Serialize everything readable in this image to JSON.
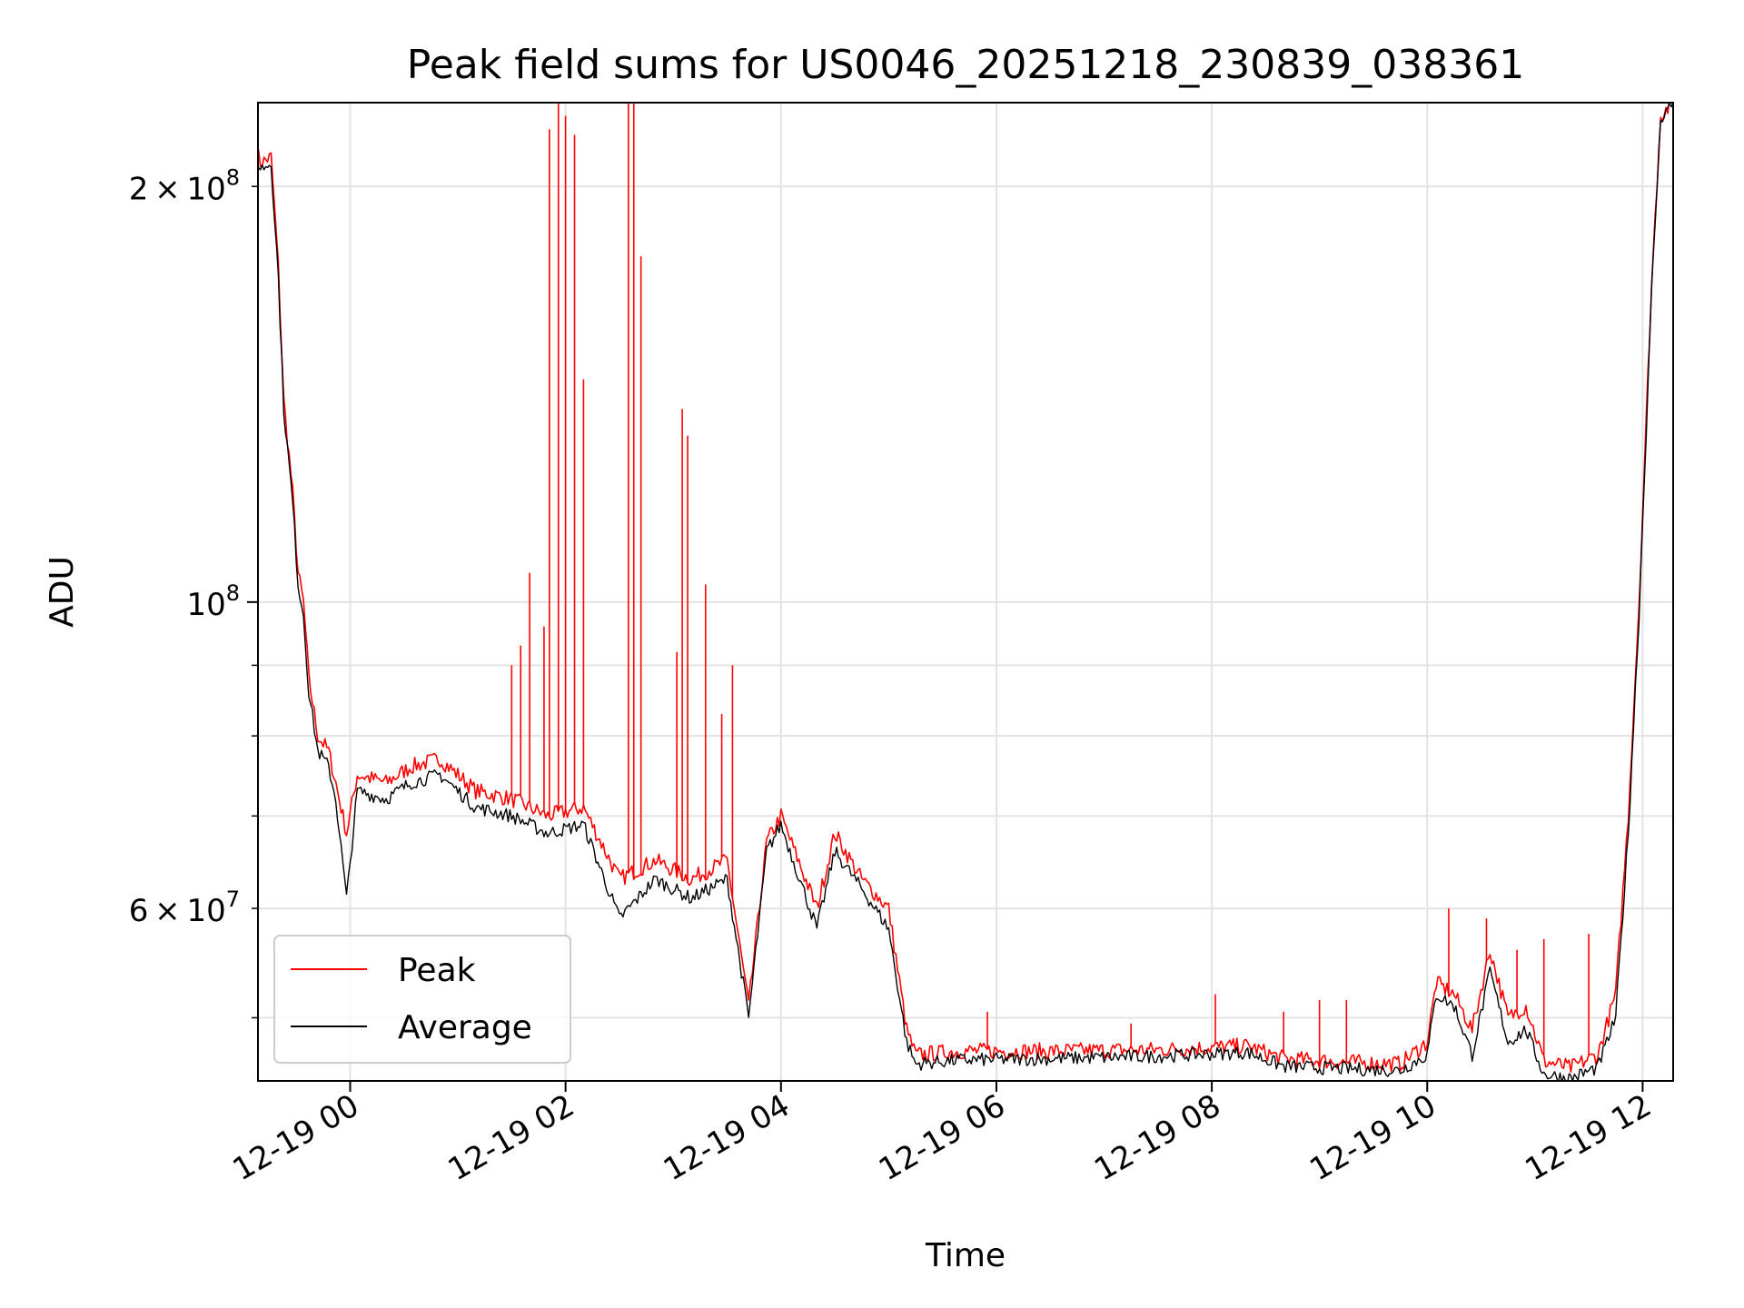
{
  "chart_data": {
    "type": "line",
    "title": "Peak field sums for US0046_20251218_230839_038361",
    "xlabel": "Time",
    "ylabel": "ADU",
    "x_axis": {
      "kind": "time",
      "range": [
        "2025-12-18T23:08:39",
        "2025-12-19T12:17:00"
      ],
      "ticks": [
        {
          "t": "2025-12-19T00:00",
          "label": "12-19 00"
        },
        {
          "t": "2025-12-19T02:00",
          "label": "12-19 02"
        },
        {
          "t": "2025-12-19T04:00",
          "label": "12-19 04"
        },
        {
          "t": "2025-12-19T06:00",
          "label": "12-19 06"
        },
        {
          "t": "2025-12-19T08:00",
          "label": "12-19 08"
        },
        {
          "t": "2025-12-19T10:00",
          "label": "12-19 10"
        },
        {
          "t": "2025-12-19T12:00",
          "label": "12-19 12"
        }
      ]
    },
    "y_axis": {
      "scale": "log",
      "range": [
        45000000,
        230000000
      ],
      "major_ticks": [
        {
          "value": 100000000,
          "base": "10",
          "exp": "8"
        }
      ],
      "minor_ticks": [
        {
          "value": 60000000,
          "mant": "6",
          "exp": "7",
          "labeled": true
        },
        {
          "value": 200000000,
          "mant": "2",
          "exp": "8",
          "labeled": true
        },
        {
          "value": 50000000,
          "labeled": false
        },
        {
          "value": 70000000,
          "labeled": false
        },
        {
          "value": 80000000,
          "labeled": false
        },
        {
          "value": 90000000,
          "labeled": false
        }
      ]
    },
    "grid": true,
    "legend": {
      "position": "lower-left"
    },
    "series": [
      {
        "name": "Peak",
        "color": "#ff0000",
        "points": [
          [
            "2025-12-18T23:08",
            212000000
          ],
          [
            "2025-12-18T23:10",
            208000000
          ],
          [
            "2025-12-18T23:16",
            210000000
          ],
          [
            "2025-12-18T23:20",
            175000000
          ],
          [
            "2025-12-18T23:23",
            140000000
          ],
          [
            "2025-12-18T23:28",
            120000000
          ],
          [
            "2025-12-18T23:31",
            105000000
          ],
          [
            "2025-12-18T23:34",
            100000000
          ],
          [
            "2025-12-18T23:37",
            88000000
          ],
          [
            "2025-12-18T23:42",
            80000000
          ],
          [
            "2025-12-18T23:48",
            78000000
          ],
          [
            "2025-12-18T23:52",
            74000000
          ],
          [
            "2025-12-18T23:58",
            68000000
          ],
          [
            "2025-12-19T00:04",
            75000000
          ],
          [
            "2025-12-19T00:20",
            74000000
          ],
          [
            "2025-12-19T00:34",
            76000000
          ],
          [
            "2025-12-19T00:50",
            77000000
          ],
          [
            "2025-12-19T01:10",
            73000000
          ],
          [
            "2025-12-19T01:30",
            72000000
          ],
          [
            "2025-12-19T01:50",
            70000000
          ],
          [
            "2025-12-19T02:10",
            71000000
          ],
          [
            "2025-12-19T02:30",
            63000000
          ],
          [
            "2025-12-19T02:50",
            65000000
          ],
          [
            "2025-12-19T03:10",
            63000000
          ],
          [
            "2025-12-19T03:30",
            65000000
          ],
          [
            "2025-12-19T03:42",
            51000000
          ],
          [
            "2025-12-19T03:52",
            67000000
          ],
          [
            "2025-12-19T04:00",
            70000000
          ],
          [
            "2025-12-19T04:20",
            60000000
          ],
          [
            "2025-12-19T04:30",
            68000000
          ],
          [
            "2025-12-19T04:45",
            63000000
          ],
          [
            "2025-12-19T05:00",
            60000000
          ],
          [
            "2025-12-19T05:10",
            49000000
          ],
          [
            "2025-12-19T05:15",
            47000000
          ],
          [
            "2025-12-19T05:40",
            47300000
          ],
          [
            "2025-12-19T06:30",
            47300000
          ],
          [
            "2025-12-19T07:30",
            47400000
          ],
          [
            "2025-12-19T08:20",
            47700000
          ],
          [
            "2025-12-19T08:40",
            46700000
          ],
          [
            "2025-12-19T09:20",
            46400000
          ],
          [
            "2025-12-19T09:45",
            46300000
          ],
          [
            "2025-12-19T10:00",
            48000000
          ],
          [
            "2025-12-19T10:05",
            53000000
          ],
          [
            "2025-12-19T10:15",
            52000000
          ],
          [
            "2025-12-19T10:25",
            49000000
          ],
          [
            "2025-12-19T10:35",
            56000000
          ],
          [
            "2025-12-19T10:45",
            50000000
          ],
          [
            "2025-12-19T10:55",
            51000000
          ],
          [
            "2025-12-19T11:05",
            46500000
          ],
          [
            "2025-12-19T11:20",
            46000000
          ],
          [
            "2025-12-19T11:35",
            47000000
          ],
          [
            "2025-12-19T11:45",
            52000000
          ],
          [
            "2025-12-19T11:52",
            70000000
          ],
          [
            "2025-12-19T11:58",
            100000000
          ],
          [
            "2025-12-19T12:05",
            170000000
          ],
          [
            "2025-12-19T12:10",
            225000000
          ],
          [
            "2025-12-19T12:17",
            230000000
          ]
        ],
        "spikes": [
          [
            "2025-12-19T01:30",
            90000000
          ],
          [
            "2025-12-19T01:35",
            93000000
          ],
          [
            "2025-12-19T01:40",
            105000000
          ],
          [
            "2025-12-19T01:48",
            96000000
          ],
          [
            "2025-12-19T01:51",
            220000000
          ],
          [
            "2025-12-19T01:56",
            230000000
          ],
          [
            "2025-12-19T02:00",
            225000000
          ],
          [
            "2025-12-19T02:05",
            218000000
          ],
          [
            "2025-12-19T02:10",
            145000000
          ],
          [
            "2025-12-19T02:35",
            230000000
          ],
          [
            "2025-12-19T02:38",
            230000000
          ],
          [
            "2025-12-19T02:42",
            178000000
          ],
          [
            "2025-12-19T03:02",
            92000000
          ],
          [
            "2025-12-19T03:05",
            138000000
          ],
          [
            "2025-12-19T03:08",
            132000000
          ],
          [
            "2025-12-19T03:18",
            103000000
          ],
          [
            "2025-12-19T03:27",
            83000000
          ],
          [
            "2025-12-19T03:33",
            90000000
          ],
          [
            "2025-12-19T05:55",
            50500000
          ],
          [
            "2025-12-19T07:15",
            49500000
          ],
          [
            "2025-12-19T08:02",
            52000000
          ],
          [
            "2025-12-19T08:40",
            50500000
          ],
          [
            "2025-12-19T09:00",
            51500000
          ],
          [
            "2025-12-19T09:15",
            51500000
          ],
          [
            "2025-12-19T10:12",
            60000000
          ],
          [
            "2025-12-19T10:33",
            59000000
          ],
          [
            "2025-12-19T10:50",
            56000000
          ],
          [
            "2025-12-19T11:05",
            57000000
          ],
          [
            "2025-12-19T11:30",
            57500000
          ]
        ]
      },
      {
        "name": "Average",
        "color": "#000000",
        "points": [
          [
            "2025-12-18T23:08",
            210000000
          ],
          [
            "2025-12-18T23:10",
            206000000
          ],
          [
            "2025-12-18T23:16",
            208000000
          ],
          [
            "2025-12-18T23:20",
            172000000
          ],
          [
            "2025-12-18T23:23",
            138000000
          ],
          [
            "2025-12-18T23:28",
            118000000
          ],
          [
            "2025-12-18T23:31",
            103000000
          ],
          [
            "2025-12-18T23:34",
            98000000
          ],
          [
            "2025-12-18T23:37",
            86000000
          ],
          [
            "2025-12-18T23:42",
            78000000
          ],
          [
            "2025-12-18T23:48",
            76000000
          ],
          [
            "2025-12-18T23:52",
            72000000
          ],
          [
            "2025-12-18T23:58",
            61000000
          ],
          [
            "2025-12-19T00:04",
            73000000
          ],
          [
            "2025-12-19T00:20",
            72000000
          ],
          [
            "2025-12-19T00:34",
            74000000
          ],
          [
            "2025-12-19T00:50",
            75000000
          ],
          [
            "2025-12-19T01:10",
            71000000
          ],
          [
            "2025-12-19T01:30",
            70000000
          ],
          [
            "2025-12-19T01:50",
            68000000
          ],
          [
            "2025-12-19T02:10",
            69000000
          ],
          [
            "2025-12-19T02:30",
            59000000
          ],
          [
            "2025-12-19T02:50",
            63000000
          ],
          [
            "2025-12-19T03:10",
            61000000
          ],
          [
            "2025-12-19T03:30",
            63000000
          ],
          [
            "2025-12-19T03:42",
            50000000
          ],
          [
            "2025-12-19T03:52",
            66000000
          ],
          [
            "2025-12-19T04:00",
            69000000
          ],
          [
            "2025-12-19T04:20",
            58000000
          ],
          [
            "2025-12-19T04:30",
            66000000
          ],
          [
            "2025-12-19T04:45",
            62000000
          ],
          [
            "2025-12-19T05:00",
            58000000
          ],
          [
            "2025-12-19T05:10",
            48000000
          ],
          [
            "2025-12-19T05:15",
            46300000
          ],
          [
            "2025-12-19T05:40",
            46600000
          ],
          [
            "2025-12-19T06:30",
            46700000
          ],
          [
            "2025-12-19T07:30",
            46900000
          ],
          [
            "2025-12-19T08:20",
            47200000
          ],
          [
            "2025-12-19T08:40",
            46100000
          ],
          [
            "2025-12-19T09:20",
            45900000
          ],
          [
            "2025-12-19T09:45",
            45800000
          ],
          [
            "2025-12-19T10:00",
            47000000
          ],
          [
            "2025-12-19T10:05",
            52000000
          ],
          [
            "2025-12-19T10:15",
            51000000
          ],
          [
            "2025-12-19T10:25",
            47000000
          ],
          [
            "2025-12-19T10:35",
            54000000
          ],
          [
            "2025-12-19T10:45",
            48000000
          ],
          [
            "2025-12-19T10:55",
            49000000
          ],
          [
            "2025-12-19T11:05",
            45500000
          ],
          [
            "2025-12-19T11:20",
            45200000
          ],
          [
            "2025-12-19T11:35",
            46000000
          ],
          [
            "2025-12-19T11:45",
            50000000
          ],
          [
            "2025-12-19T11:52",
            68000000
          ],
          [
            "2025-12-19T11:58",
            98000000
          ],
          [
            "2025-12-19T12:05",
            168000000
          ],
          [
            "2025-12-19T12:10",
            224000000
          ],
          [
            "2025-12-19T12:17",
            230000000
          ]
        ]
      }
    ]
  }
}
